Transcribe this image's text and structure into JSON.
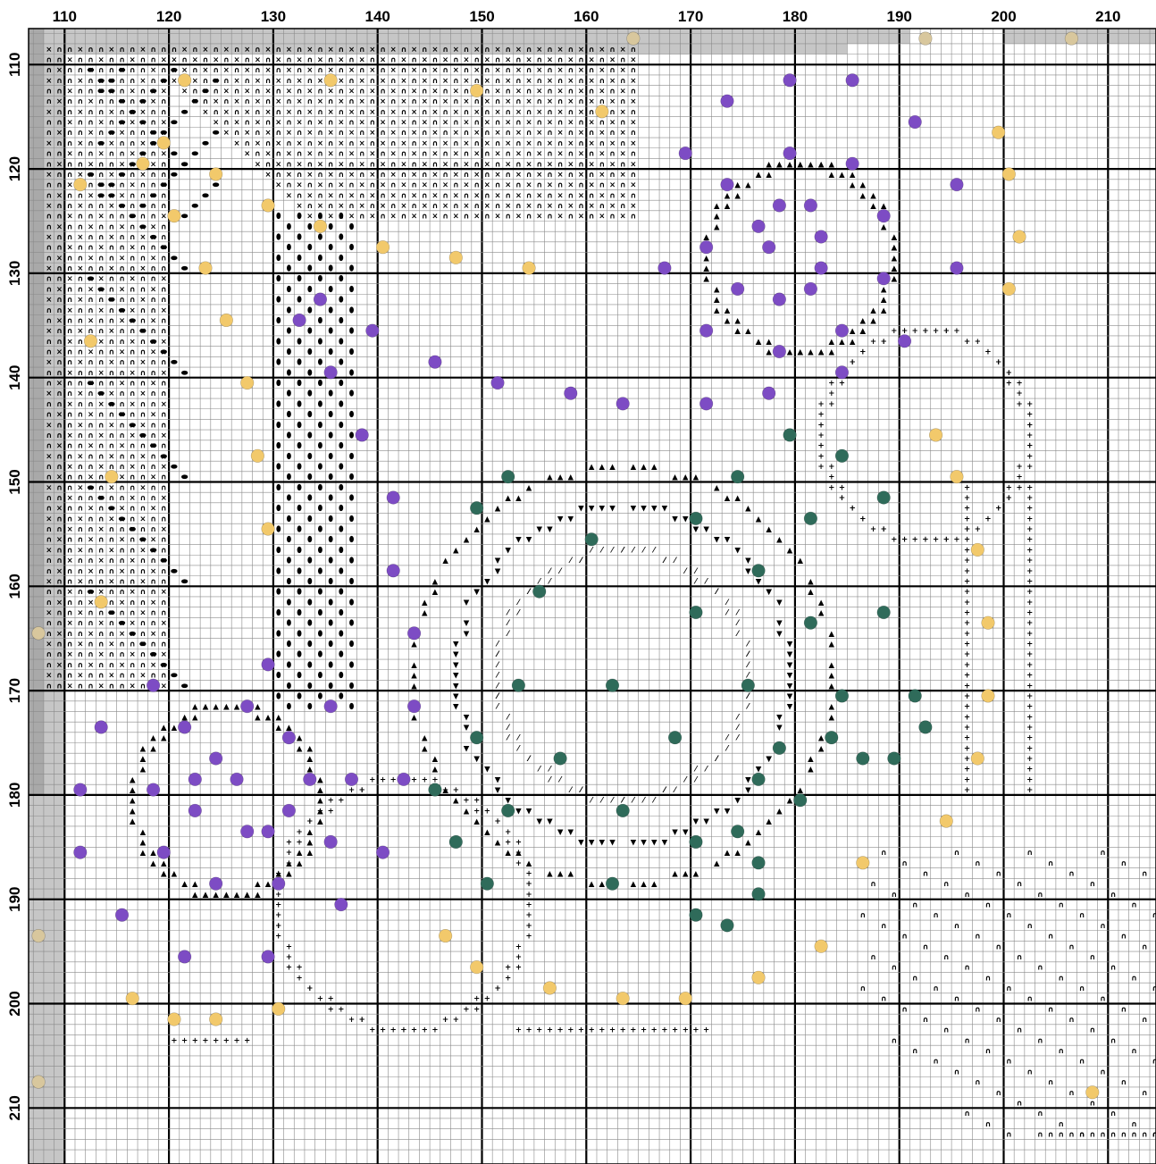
{
  "chart_data": {
    "type": "cross-stitch-pattern",
    "x_range": [
      107,
      215
    ],
    "y_range": [
      106,
      213
    ],
    "x_tick_labels": [
      "110",
      "120",
      "130",
      "140",
      "150",
      "160",
      "170",
      "180",
      "190",
      "200",
      "210"
    ],
    "y_tick_labels": [
      "110",
      "120",
      "130",
      "140",
      "150",
      "160",
      "170",
      "180",
      "190",
      "200",
      "210"
    ],
    "colors": {
      "purple": "#7d4cc4",
      "green": "#2f6b5a",
      "gold": "#f2c96b",
      "beige": "#d8c79d",
      "shade_dark": "#a9a9a9",
      "shade_light": "#c6c6c6",
      "grid_major": "#000000",
      "grid_minor": "#8a8a8a"
    },
    "symbols": {
      "triangle": "▲",
      "down_triangle": "▼",
      "cross": "×",
      "arch": "∩",
      "plus": "+",
      "slash": "⁄",
      "bean": "⬮",
      "leaf": "⬬"
    },
    "beads": {
      "purple": [
        [
          179,
          111
        ],
        [
          185,
          111
        ],
        [
          173,
          113
        ],
        [
          191,
          115
        ],
        [
          169,
          118
        ],
        [
          179,
          118
        ],
        [
          185,
          119
        ],
        [
          173,
          121
        ],
        [
          195,
          121
        ],
        [
          178,
          123
        ],
        [
          181,
          123
        ],
        [
          188,
          124
        ],
        [
          176,
          125
        ],
        [
          182,
          126
        ],
        [
          177,
          127
        ],
        [
          171,
          127
        ],
        [
          167,
          129
        ],
        [
          182,
          129
        ],
        [
          195,
          129
        ],
        [
          188,
          130
        ],
        [
          174,
          131
        ],
        [
          178,
          132
        ],
        [
          181,
          131
        ],
        [
          134,
          132
        ],
        [
          132,
          134
        ],
        [
          139,
          135
        ],
        [
          171,
          135
        ],
        [
          184,
          135
        ],
        [
          190,
          136
        ],
        [
          178,
          137
        ],
        [
          145,
          138
        ],
        [
          135,
          139
        ],
        [
          184,
          139
        ],
        [
          151,
          140
        ],
        [
          158,
          141
        ],
        [
          163,
          142
        ],
        [
          171,
          142
        ],
        [
          177,
          141
        ],
        [
          138,
          145
        ],
        [
          141,
          151
        ],
        [
          141,
          158
        ],
        [
          143,
          164
        ],
        [
          129,
          167
        ],
        [
          118,
          169
        ],
        [
          127,
          171
        ],
        [
          135,
          171
        ],
        [
          143,
          171
        ],
        [
          113,
          173
        ],
        [
          121,
          173
        ],
        [
          131,
          174
        ],
        [
          124,
          176
        ],
        [
          122,
          178
        ],
        [
          126,
          178
        ],
        [
          133,
          178
        ],
        [
          137,
          178
        ],
        [
          142,
          178
        ],
        [
          111,
          179
        ],
        [
          118,
          179
        ],
        [
          122,
          181
        ],
        [
          131,
          181
        ],
        [
          127,
          183
        ],
        [
          129,
          183
        ],
        [
          111,
          185
        ],
        [
          119,
          185
        ],
        [
          135,
          184
        ],
        [
          140,
          185
        ],
        [
          124,
          188
        ],
        [
          130,
          188
        ],
        [
          115,
          191
        ],
        [
          136,
          190
        ],
        [
          121,
          195
        ],
        [
          129,
          195
        ]
      ],
      "green": [
        [
          179,
          145
        ],
        [
          184,
          147
        ],
        [
          174,
          149
        ],
        [
          152,
          149
        ],
        [
          188,
          151
        ],
        [
          149,
          152
        ],
        [
          170,
          153
        ],
        [
          181,
          153
        ],
        [
          160,
          155
        ],
        [
          176,
          158
        ],
        [
          155,
          160
        ],
        [
          170,
          162
        ],
        [
          188,
          162
        ],
        [
          181,
          163
        ],
        [
          162,
          169
        ],
        [
          153,
          169
        ],
        [
          175,
          169
        ],
        [
          184,
          170
        ],
        [
          191,
          170
        ],
        [
          149,
          174
        ],
        [
          168,
          174
        ],
        [
          178,
          175
        ],
        [
          157,
          176
        ],
        [
          186,
          176
        ],
        [
          189,
          176
        ],
        [
          192,
          173
        ],
        [
          183,
          174
        ],
        [
          176,
          178
        ],
        [
          145,
          179
        ],
        [
          180,
          180
        ],
        [
          152,
          181
        ],
        [
          163,
          181
        ],
        [
          147,
          184
        ],
        [
          170,
          184
        ],
        [
          174,
          183
        ],
        [
          176,
          186
        ],
        [
          150,
          188
        ],
        [
          162,
          188
        ],
        [
          176,
          189
        ],
        [
          170,
          191
        ],
        [
          173,
          192
        ]
      ],
      "gold": [
        [
          121,
          111
        ],
        [
          135,
          111
        ],
        [
          149,
          112
        ],
        [
          161,
          114
        ],
        [
          199,
          116
        ],
        [
          119,
          117
        ],
        [
          117,
          119
        ],
        [
          124,
          120
        ],
        [
          200,
          120
        ],
        [
          111,
          121
        ],
        [
          120,
          124
        ],
        [
          129,
          123
        ],
        [
          134,
          125
        ],
        [
          201,
          126
        ],
        [
          140,
          127
        ],
        [
          147,
          128
        ],
        [
          123,
          129
        ],
        [
          154,
          129
        ],
        [
          200,
          131
        ],
        [
          125,
          134
        ],
        [
          112,
          136
        ],
        [
          127,
          140
        ],
        [
          193,
          145
        ],
        [
          128,
          147
        ],
        [
          195,
          149
        ],
        [
          114,
          149
        ],
        [
          197,
          156
        ],
        [
          129,
          154
        ],
        [
          113,
          161
        ],
        [
          198,
          163
        ],
        [
          198,
          170
        ],
        [
          197,
          176
        ],
        [
          194,
          182
        ],
        [
          186,
          186
        ],
        [
          146,
          193
        ],
        [
          149,
          196
        ],
        [
          182,
          194
        ],
        [
          176,
          197
        ],
        [
          156,
          198
        ],
        [
          163,
          199
        ],
        [
          169,
          199
        ],
        [
          116,
          199
        ],
        [
          120,
          201
        ],
        [
          124,
          201
        ],
        [
          130,
          200
        ],
        [
          208,
          208
        ]
      ],
      "beige": [
        [
          164,
          107
        ],
        [
          192,
          107
        ],
        [
          206,
          107
        ],
        [
          107,
          164
        ],
        [
          107,
          193
        ],
        [
          107,
          207
        ]
      ]
    }
  }
}
